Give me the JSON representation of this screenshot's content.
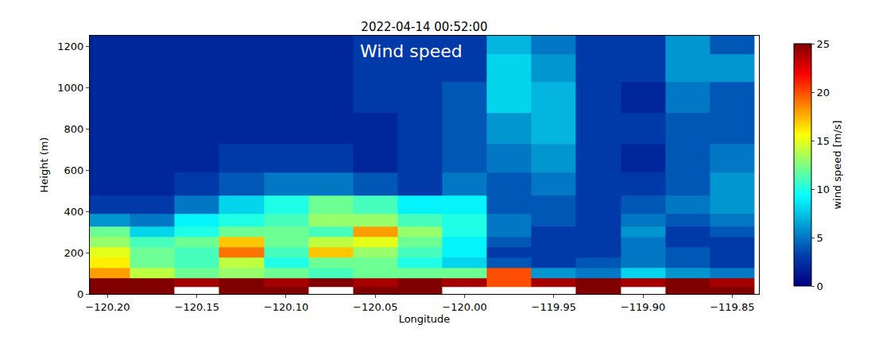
{
  "chart_data": {
    "type": "heatmap",
    "title": "2022-04-14 00:52:00",
    "annotation": "Wind speed",
    "x_label": "Longitude",
    "y_label": "Height (m)",
    "x": [
      -120.2,
      -120.175,
      -120.15,
      -120.125,
      -120.1,
      -120.075,
      -120.05,
      -120.025,
      -120.0,
      -119.975,
      -119.95,
      -119.925,
      -119.9,
      -119.875,
      -119.85
    ],
    "y": [
      15,
      50,
      100,
      150,
      200,
      250,
      300,
      350,
      425,
      525,
      650,
      800,
      950,
      1100,
      1225
    ],
    "z": [
      [
        25,
        25,
        null,
        25,
        25,
        null,
        25,
        25,
        null,
        null,
        null,
        25,
        null,
        25,
        25
      ],
      [
        25,
        25,
        24,
        25,
        24,
        25,
        24,
        25,
        24,
        20,
        24,
        25,
        24,
        25,
        24
      ],
      [
        18,
        14,
        12,
        13,
        12,
        11,
        12,
        12,
        12,
        20,
        6,
        5,
        8,
        6,
        5
      ],
      [
        16,
        12,
        11,
        14,
        10,
        12,
        12,
        10,
        8,
        4,
        3,
        4,
        5,
        4,
        3
      ],
      [
        15,
        12,
        11,
        19,
        11,
        17,
        13,
        11,
        9,
        3,
        3,
        3,
        5,
        4,
        3
      ],
      [
        13,
        11,
        12,
        17,
        12,
        14,
        15,
        12,
        9,
        4,
        3,
        3,
        5,
        3,
        3
      ],
      [
        12,
        8,
        10,
        12,
        12,
        11,
        18,
        13,
        10,
        5,
        3,
        3,
        6,
        3,
        4
      ],
      [
        6,
        5,
        9,
        10,
        11,
        13,
        13,
        11,
        10,
        5,
        4,
        3,
        5,
        4,
        5
      ],
      [
        3,
        3,
        5,
        8,
        10,
        12,
        11,
        9,
        9,
        4,
        4,
        3,
        4,
        5,
        6
      ],
      [
        2,
        2,
        3,
        4,
        5,
        5,
        4,
        3,
        5,
        4,
        5,
        3,
        3,
        4,
        6
      ],
      [
        2,
        2,
        2,
        3,
        3,
        3,
        2,
        3,
        4,
        5,
        6,
        3,
        2,
        4,
        5
      ],
      [
        2,
        2,
        2,
        2,
        2,
        2,
        2,
        3,
        4,
        6,
        7,
        3,
        3,
        4,
        4
      ],
      [
        2,
        2,
        2,
        2,
        2,
        2,
        3,
        3,
        4,
        8,
        7,
        3,
        2,
        5,
        4
      ],
      [
        2,
        2,
        2,
        2,
        2,
        2,
        3,
        3,
        3,
        8,
        6,
        3,
        3,
        6,
        6
      ],
      [
        2,
        2,
        2,
        2,
        2,
        2,
        3,
        3,
        3,
        7,
        5,
        3,
        3,
        6,
        4
      ]
    ],
    "xlim": [
      -120.21,
      -119.835
    ],
    "ylim": [
      0,
      1250
    ],
    "xticks": [
      {
        "value": -120.2,
        "label": "−120.20"
      },
      {
        "value": -120.15,
        "label": "−120.15"
      },
      {
        "value": -120.1,
        "label": "−120.10"
      },
      {
        "value": -120.05,
        "label": "−120.05"
      },
      {
        "value": -120.0,
        "label": "−120.00"
      },
      {
        "value": -119.95,
        "label": "−119.95"
      },
      {
        "value": -119.9,
        "label": "−119.90"
      },
      {
        "value": -119.85,
        "label": "−119.85"
      }
    ],
    "yticks": [
      0,
      200,
      400,
      600,
      800,
      1000,
      1200
    ],
    "colorbar": {
      "title": "wind speed [m/s]",
      "range": [
        0,
        25
      ],
      "ticks": [
        0,
        5,
        10,
        15,
        20,
        25
      ]
    }
  }
}
